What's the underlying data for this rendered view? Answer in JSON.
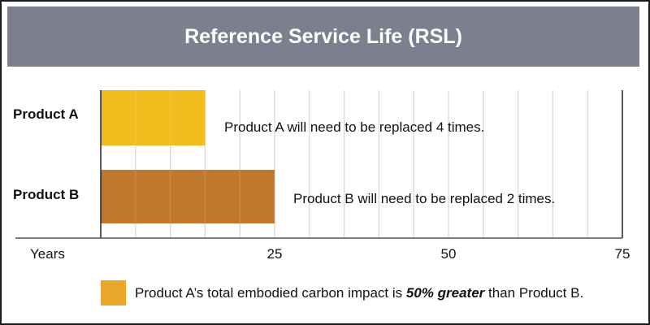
{
  "chart_data": {
    "type": "bar",
    "orientation": "horizontal",
    "title": "Reference Service Life (RSL)",
    "xlabel": "Years",
    "categories": [
      "Product A",
      "Product B"
    ],
    "values": [
      15,
      25
    ],
    "colors": [
      "#f0bc1e",
      "#c0792c"
    ],
    "xlim": [
      0,
      75
    ],
    "xticks": [
      25,
      50,
      75
    ],
    "gridline_step": 5,
    "grid": true,
    "annotations": [
      "Product A will need to be replaced 4 times.",
      "Product B will need to be replaced 2 times."
    ],
    "legend": {
      "color": "#e9a72b",
      "text_before": "Product A’s total embodied carbon impact is ",
      "text_emphasis": "50% greater",
      "text_after": " than Product B.",
      "placement": "bottom"
    }
  }
}
